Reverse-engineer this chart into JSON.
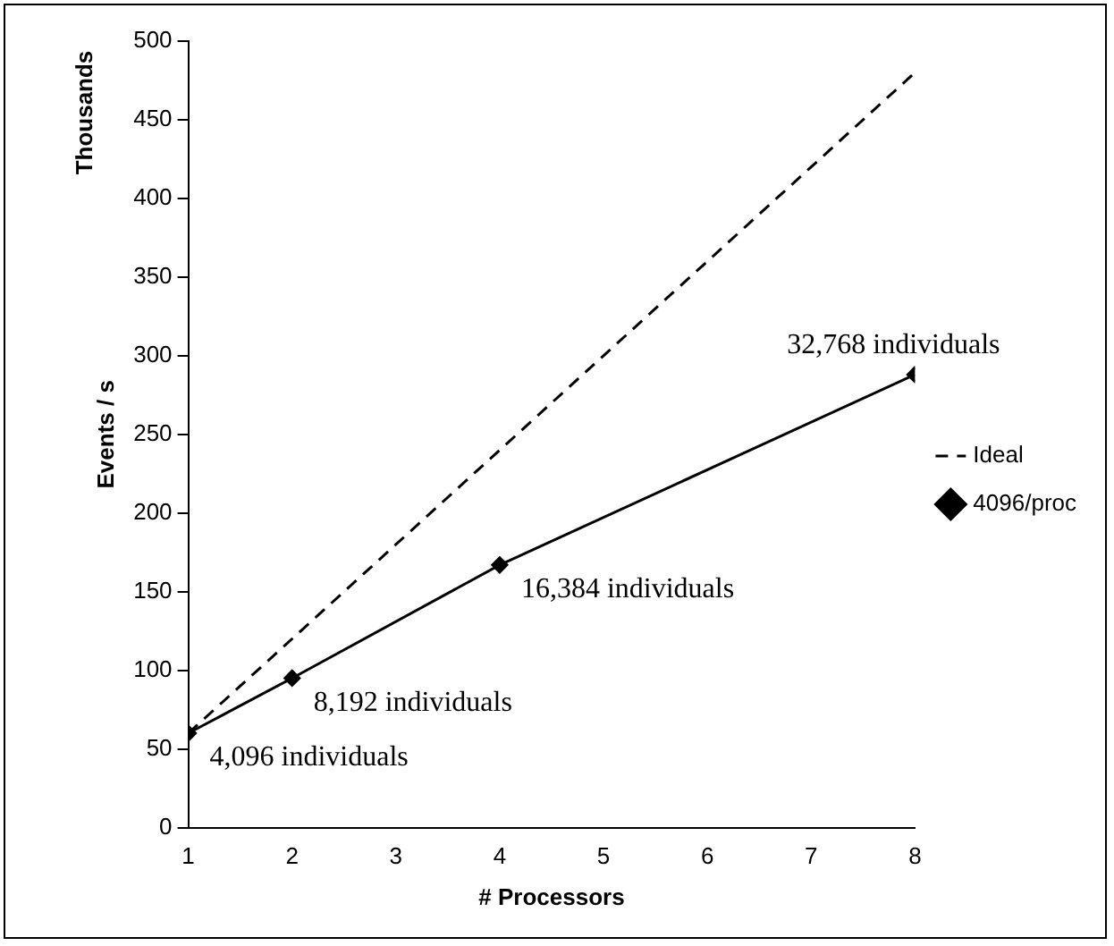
{
  "chart_data": {
    "type": "line",
    "xlabel": "# Processors",
    "ylabel": "Events / s",
    "x": [
      1,
      2,
      4,
      8
    ],
    "series": [
      {
        "name": "Ideal",
        "color": "#000000",
        "values": [
          60,
          120,
          240,
          480
        ],
        "line_style": "dashed",
        "marker": "none"
      },
      {
        "name": "4096/proc",
        "color": "#000000",
        "values": [
          60,
          95,
          167,
          288
        ],
        "line_style": "solid",
        "marker": "diamond"
      }
    ],
    "xlim": [
      1,
      8
    ],
    "xticks": [
      1,
      2,
      3,
      4,
      5,
      6,
      7,
      8
    ],
    "ylim": [
      0,
      500
    ],
    "yticks": [
      0,
      50,
      100,
      150,
      200,
      250,
      300,
      350,
      400,
      450,
      500
    ],
    "grid": false,
    "legend": "right",
    "annotations": [
      "Thousands",
      {
        "text": "4,096 individuals",
        "x": 1,
        "y": 60
      },
      {
        "text": "8,192 individuals",
        "x": 2,
        "y": 95
      },
      {
        "text": "16,384 individuals",
        "x": 4,
        "y": 167
      },
      {
        "text": "32,768 individuals",
        "x": 8,
        "y": 288
      }
    ]
  }
}
